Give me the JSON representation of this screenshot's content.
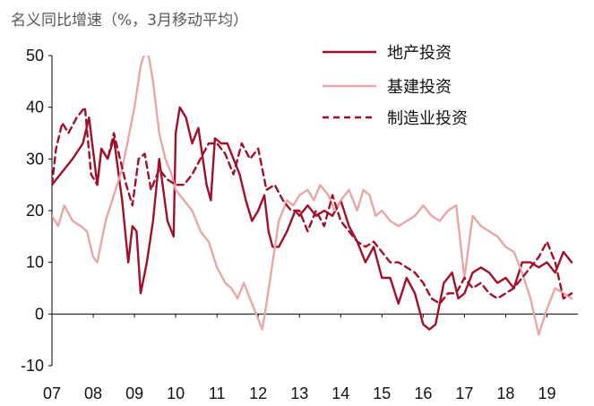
{
  "chart_data": {
    "type": "line",
    "title": "名义同比增速（%，3月移动平均）",
    "xlabel": "",
    "ylabel": "",
    "ylim": [
      -10,
      50
    ],
    "yticks": [
      -10,
      0,
      10,
      20,
      30,
      40,
      50
    ],
    "xlim": [
      2007.0,
      2019.75
    ],
    "xticks": [
      "07",
      "08",
      "09",
      "10",
      "11",
      "12",
      "13",
      "14",
      "15",
      "16",
      "17",
      "18",
      "19"
    ],
    "grid": false,
    "legend_position": "top-right",
    "series": [
      {
        "name": "地产投资",
        "color": "#A0102A",
        "style": "solid",
        "x": [
          2007.0,
          2007.2,
          2007.5,
          2007.75,
          2007.9,
          2008.1,
          2008.2,
          2008.35,
          2008.5,
          2008.7,
          2008.85,
          2008.95,
          2009.05,
          2009.15,
          2009.3,
          2009.45,
          2009.6,
          2009.8,
          2009.95,
          2010.0,
          2010.1,
          2010.25,
          2010.4,
          2010.55,
          2010.75,
          2010.85,
          2010.95,
          2011.1,
          2011.25,
          2011.4,
          2011.55,
          2011.7,
          2011.85,
          2012.0,
          2012.15,
          2012.25,
          2012.35,
          2012.5,
          2012.7,
          2012.9,
          2013.0,
          2013.2,
          2013.4,
          2013.6,
          2013.8,
          2014.0,
          2014.2,
          2014.4,
          2014.6,
          2014.8,
          2015.0,
          2015.2,
          2015.4,
          2015.6,
          2015.8,
          2016.0,
          2016.15,
          2016.3,
          2016.5,
          2016.7,
          2016.85,
          2017.0,
          2017.2,
          2017.4,
          2017.6,
          2017.8,
          2018.0,
          2018.2,
          2018.4,
          2018.6,
          2018.8,
          2019.0,
          2019.2,
          2019.4,
          2019.6
        ],
        "values": [
          25,
          27,
          30,
          33,
          38,
          25,
          32,
          30,
          34,
          22,
          10,
          17,
          16,
          4,
          10,
          18,
          30,
          18,
          15,
          35,
          40,
          38,
          33,
          36,
          25,
          22,
          34,
          33,
          33,
          30,
          27,
          22,
          18,
          20,
          23,
          16,
          13,
          13,
          16,
          20,
          19,
          21,
          19,
          20,
          19,
          22,
          17,
          14,
          10,
          13,
          7,
          7,
          2,
          7,
          4,
          -2,
          -3,
          -2,
          6,
          8,
          3,
          4,
          8,
          9,
          8,
          6,
          7,
          5,
          10,
          10,
          9,
          10,
          8,
          12,
          10
        ]
      },
      {
        "name": "基建投资",
        "color": "#E8A7A7",
        "style": "solid",
        "x": [
          2007.0,
          2007.15,
          2007.3,
          2007.5,
          2007.7,
          2007.85,
          2008.0,
          2008.1,
          2008.3,
          2008.5,
          2008.7,
          2008.85,
          2009.0,
          2009.15,
          2009.3,
          2009.45,
          2009.6,
          2009.75,
          2009.9,
          2010.0,
          2010.2,
          2010.4,
          2010.6,
          2010.8,
          2011.0,
          2011.2,
          2011.35,
          2011.5,
          2011.65,
          2011.85,
          2012.0,
          2012.1,
          2012.2,
          2012.35,
          2012.5,
          2012.7,
          2012.85,
          2013.0,
          2013.2,
          2013.35,
          2013.5,
          2013.7,
          2013.85,
          2014.0,
          2014.2,
          2014.4,
          2014.55,
          2014.7,
          2014.85,
          2015.0,
          2015.2,
          2015.4,
          2015.6,
          2015.8,
          2016.0,
          2016.2,
          2016.4,
          2016.6,
          2016.8,
          2017.0,
          2017.2,
          2017.4,
          2017.6,
          2017.8,
          2018.0,
          2018.2,
          2018.4,
          2018.6,
          2018.8,
          2019.0,
          2019.2,
          2019.4,
          2019.6
        ],
        "values": [
          19,
          17,
          21,
          18,
          17,
          16,
          11,
          10,
          18,
          23,
          28,
          34,
          40,
          48,
          52,
          45,
          35,
          30,
          27,
          24,
          22,
          20,
          16,
          14,
          9,
          6,
          5,
          3,
          6,
          2,
          -1,
          -3,
          2,
          10,
          18,
          22,
          21,
          23,
          24,
          22,
          25,
          23,
          20,
          22,
          24,
          20,
          24,
          23,
          19,
          20,
          18,
          17,
          18,
          19,
          21,
          19,
          18,
          20,
          21,
          7,
          19,
          17,
          16,
          15,
          13,
          12,
          8,
          3,
          -4,
          1,
          5,
          4,
          3
        ]
      },
      {
        "name": "制造业投资",
        "color": "#A0102A",
        "style": "dashed",
        "x": [
          2007.0,
          2007.1,
          2007.25,
          2007.4,
          2007.6,
          2007.8,
          2007.95,
          2008.1,
          2008.2,
          2008.35,
          2008.5,
          2008.65,
          2008.8,
          2008.95,
          2009.1,
          2009.25,
          2009.4,
          2009.6,
          2009.8,
          2010.0,
          2010.2,
          2010.4,
          2010.6,
          2010.8,
          2011.0,
          2011.2,
          2011.4,
          2011.6,
          2011.8,
          2012.0,
          2012.2,
          2012.4,
          2012.6,
          2012.8,
          2013.0,
          2013.2,
          2013.4,
          2013.6,
          2013.8,
          2014.0,
          2014.2,
          2014.4,
          2014.6,
          2014.8,
          2015.0,
          2015.2,
          2015.4,
          2015.6,
          2015.8,
          2016.0,
          2016.2,
          2016.4,
          2016.6,
          2016.8,
          2017.0,
          2017.2,
          2017.4,
          2017.6,
          2017.8,
          2018.0,
          2018.2,
          2018.4,
          2018.6,
          2018.8,
          2019.0,
          2019.2,
          2019.4,
          2019.6
        ],
        "values": [
          25,
          32,
          37,
          35,
          38,
          40,
          27,
          25,
          32,
          30,
          35,
          30,
          25,
          21,
          30,
          31,
          24,
          28,
          26,
          25,
          25,
          27,
          30,
          33,
          33,
          31,
          27,
          33,
          30,
          32,
          24,
          25,
          22,
          20,
          20,
          16,
          20,
          17,
          23,
          18,
          16,
          14,
          13,
          14,
          12,
          10,
          10,
          9,
          8,
          6,
          3,
          2,
          4,
          4,
          7,
          5,
          6,
          4,
          3,
          4,
          5,
          7,
          9,
          11,
          14,
          10,
          3,
          4
        ]
      }
    ]
  }
}
